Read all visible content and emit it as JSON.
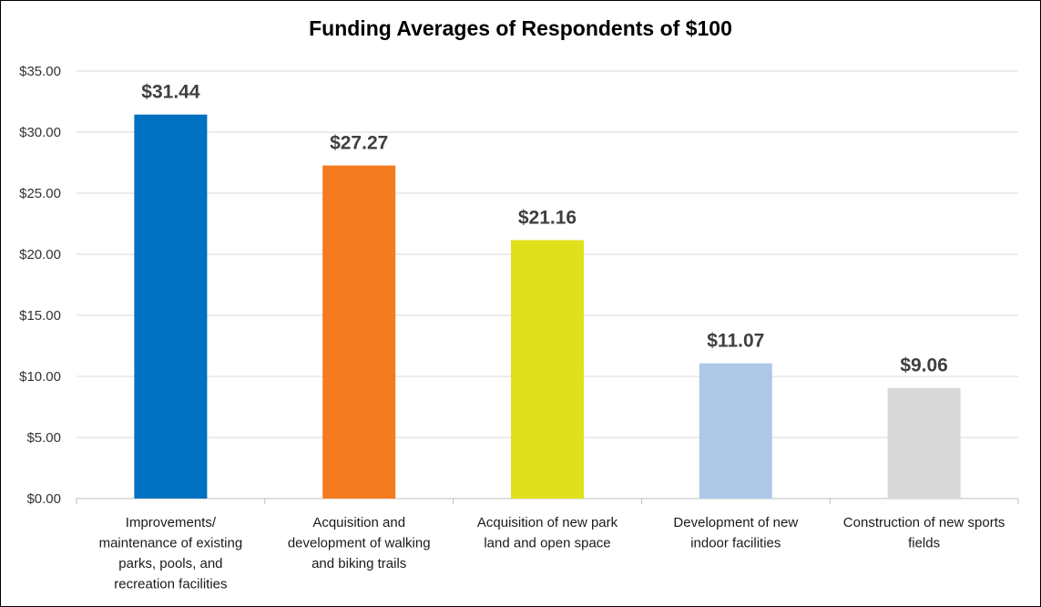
{
  "chart_data": {
    "type": "bar",
    "title": "Funding Averages of Respondents of $100",
    "xlabel": "",
    "ylabel": "",
    "ylim": [
      0,
      35
    ],
    "y_tick_step": 5,
    "y_tick_labels": [
      "$0.00",
      "$5.00",
      "$10.00",
      "$15.00",
      "$20.00",
      "$25.00",
      "$30.00",
      "$35.00"
    ],
    "grid": true,
    "legend": "none",
    "categories": [
      [
        "Improvements/",
        "maintenance of existing",
        "parks, pools, and",
        "recreation facilities"
      ],
      [
        "Acquisition and",
        "development of walking",
        "and biking trails"
      ],
      [
        "Acquisition of new park",
        "land and open space"
      ],
      [
        "Development of new",
        "indoor facilities"
      ],
      [
        "Construction of new sports",
        "fields"
      ]
    ],
    "values": [
      31.44,
      27.27,
      21.16,
      11.07,
      9.06
    ],
    "data_labels": [
      "$31.44",
      "$27.27",
      "$21.16",
      "$11.07",
      "$9.06"
    ],
    "colors": [
      "#0070c0",
      "#f47b20",
      "#e1e01c",
      "#aec8e8",
      "#d9d9d9"
    ]
  }
}
